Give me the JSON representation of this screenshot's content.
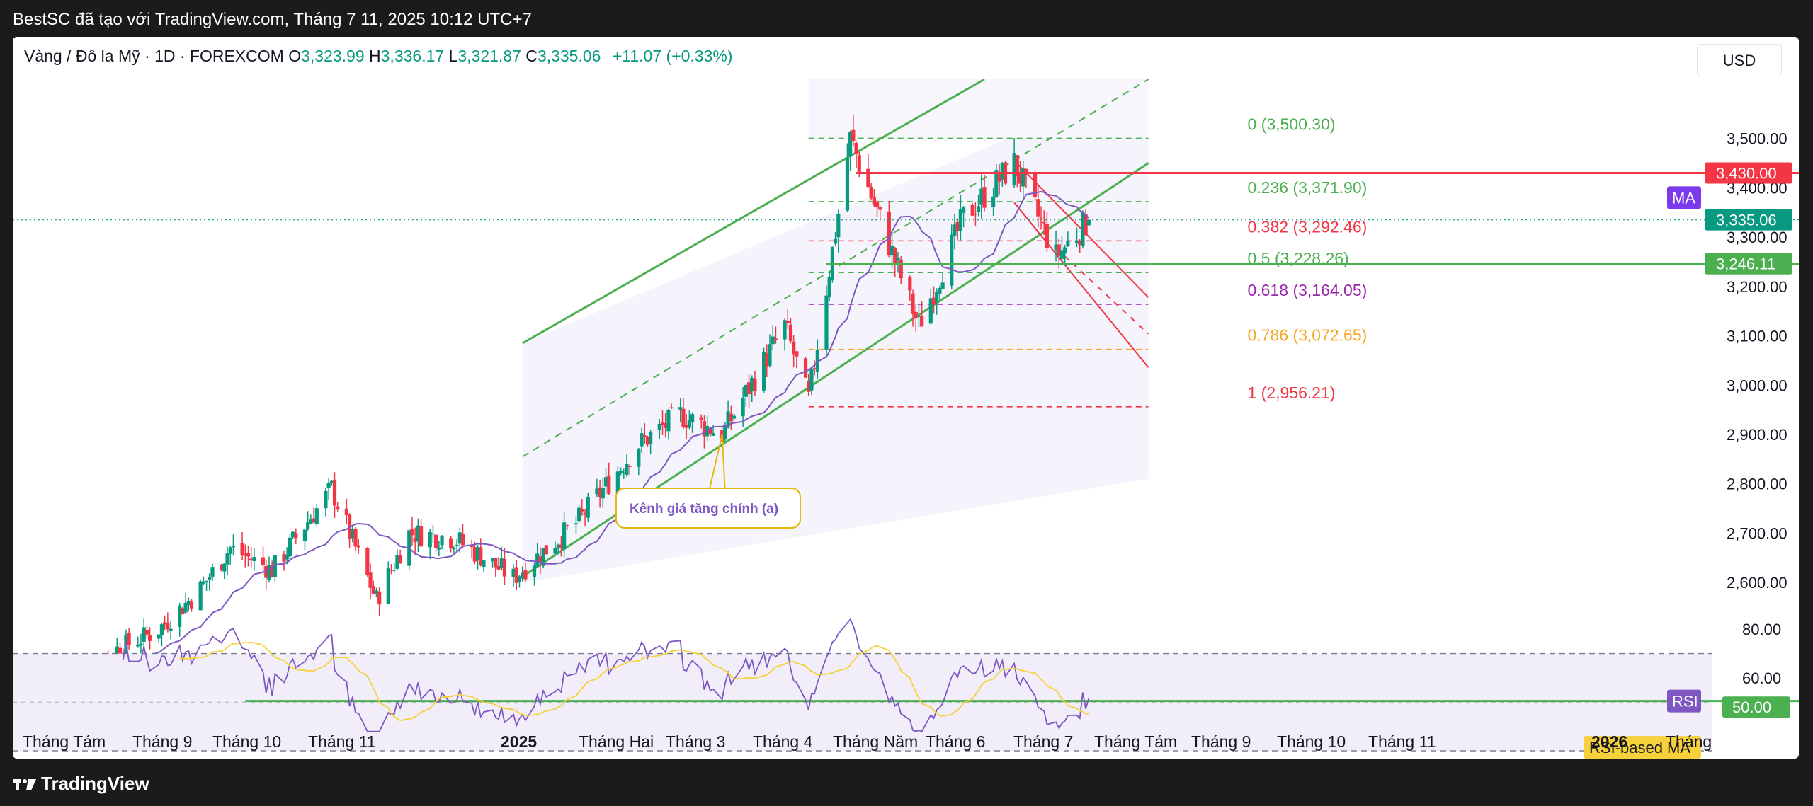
{
  "header": {
    "title": "BestSC đã tạo với TradingView.com, Tháng 7 11, 2025 10:12 UTC+7"
  },
  "footer": {
    "logo_text": "TradingView"
  },
  "legend": {
    "symbol": "Vàng / Đô la Mỹ · 1D · FOREXCOM",
    "o_label": "O",
    "o_value": "3,323.99",
    "h_label": "H",
    "h_value": "3,336.17",
    "l_label": "L",
    "l_value": "3,321.87",
    "c_label": "C",
    "c_value": "3,335.06",
    "change": "+11.07 (+0.33%)"
  },
  "currency_button": "USD",
  "colors": {
    "up": "#089981",
    "down": "#f23645",
    "channel": "#4caf50",
    "ma": "#7e57c2",
    "rsi": "#7e57c2",
    "rsi_ma": "#f7d13b",
    "fib0": "#4caf50",
    "fib0382": "#f23645",
    "fib05": "#4caf50",
    "fib0618": "#9c27b0",
    "fib0786": "#f5a623",
    "fib1": "#f23645"
  },
  "chart_data": [
    {
      "type": "candlestick",
      "title": "Vàng / Đô la Mỹ · 1D · FOREXCOM",
      "ylim": [
        2530,
        3620
      ],
      "y_ticks": [
        "3,500.00",
        "3,400.00",
        "3,300.00",
        "3,200.00",
        "3,100.00",
        "3,000.00",
        "2,900.00",
        "2,800.00",
        "2,700.00",
        "2,600.00"
      ],
      "y_tick_values": [
        3500,
        3400,
        3300,
        3200,
        3100,
        3000,
        2900,
        2800,
        2700,
        2600
      ],
      "x_ticks": [
        "Tháng Tám",
        "Tháng 9",
        "Tháng 10",
        "Tháng 11",
        "2025",
        "Tháng Hai",
        "Tháng 3",
        "Tháng 4",
        "Tháng Năm",
        "Tháng 6",
        "Tháng 7",
        "Tháng Tám",
        "Tháng 9",
        "Tháng 10",
        "Tháng 11",
        "2026",
        "Tháng"
      ],
      "bold_x_ticks": [
        "2025",
        "2026"
      ],
      "path_points": [
        [
          "2024-08-01",
          2395
        ],
        [
          "2024-08-15",
          2455
        ],
        [
          "2024-09-01",
          2500
        ],
        [
          "2024-09-15",
          2580
        ],
        [
          "2024-09-26",
          2670
        ],
        [
          "2024-10-10",
          2625
        ],
        [
          "2024-10-30",
          2790
        ],
        [
          "2024-11-14",
          2565
        ],
        [
          "2024-11-25",
          2700
        ],
        [
          "2024-12-10",
          2690
        ],
        [
          "2024-12-30",
          2610
        ],
        [
          "2025-01-20",
          2720
        ],
        [
          "2025-02-10",
          2880
        ],
        [
          "2025-02-24",
          2940
        ],
        [
          "2025-03-10",
          2900
        ],
        [
          "2025-03-31",
          3120
        ],
        [
          "2025-04-08",
          2970
        ],
        [
          "2025-04-22",
          3500
        ],
        [
          "2025-05-15",
          3120
        ],
        [
          "2025-05-30",
          3340
        ],
        [
          "2025-06-16",
          3450
        ],
        [
          "2025-06-30",
          3260
        ],
        [
          "2025-07-11",
          3335
        ]
      ],
      "horizontal_levels": [
        {
          "value": 3430.0,
          "label": "3,430.00",
          "color": "#f23645"
        },
        {
          "value": 3246.11,
          "label": "3,246.11",
          "color": "#4caf50"
        }
      ],
      "last_price": {
        "value": 3335.06,
        "label": "3,335.06"
      },
      "ma_label": "MA",
      "fibonacci": [
        {
          "level": "0",
          "value": 3500.3,
          "label": "0 (3,500.30)"
        },
        {
          "level": "0.236",
          "value": 3371.9,
          "label": "0.236 (3,371.90)"
        },
        {
          "level": "0.382",
          "value": 3292.46,
          "label": "0.382 (3,292.46)"
        },
        {
          "level": "0.5",
          "value": 3228.26,
          "label": "0.5 (3,228.26)"
        },
        {
          "level": "0.618",
          "value": 3164.05,
          "label": "0.618 (3,164.05)"
        },
        {
          "level": "0.786",
          "value": 3072.65,
          "label": "0.786 (3,072.65)"
        },
        {
          "level": "1",
          "value": 2956.21,
          "label": "1 (2,956.21)"
        }
      ],
      "annotation": "Kênh giá tăng chính (a)"
    },
    {
      "type": "line",
      "title": "RSI",
      "ylim": [
        37,
        85
      ],
      "y_ticks": [
        "80.00",
        "60.00"
      ],
      "y_tick_values": [
        80,
        60
      ],
      "series": [
        {
          "name": "RSI",
          "label": "RSI",
          "last_label": "50.00"
        },
        {
          "name": "RSI-based MA",
          "label": "RSI-based MA"
        }
      ],
      "levels": [
        70,
        50,
        30
      ]
    }
  ]
}
